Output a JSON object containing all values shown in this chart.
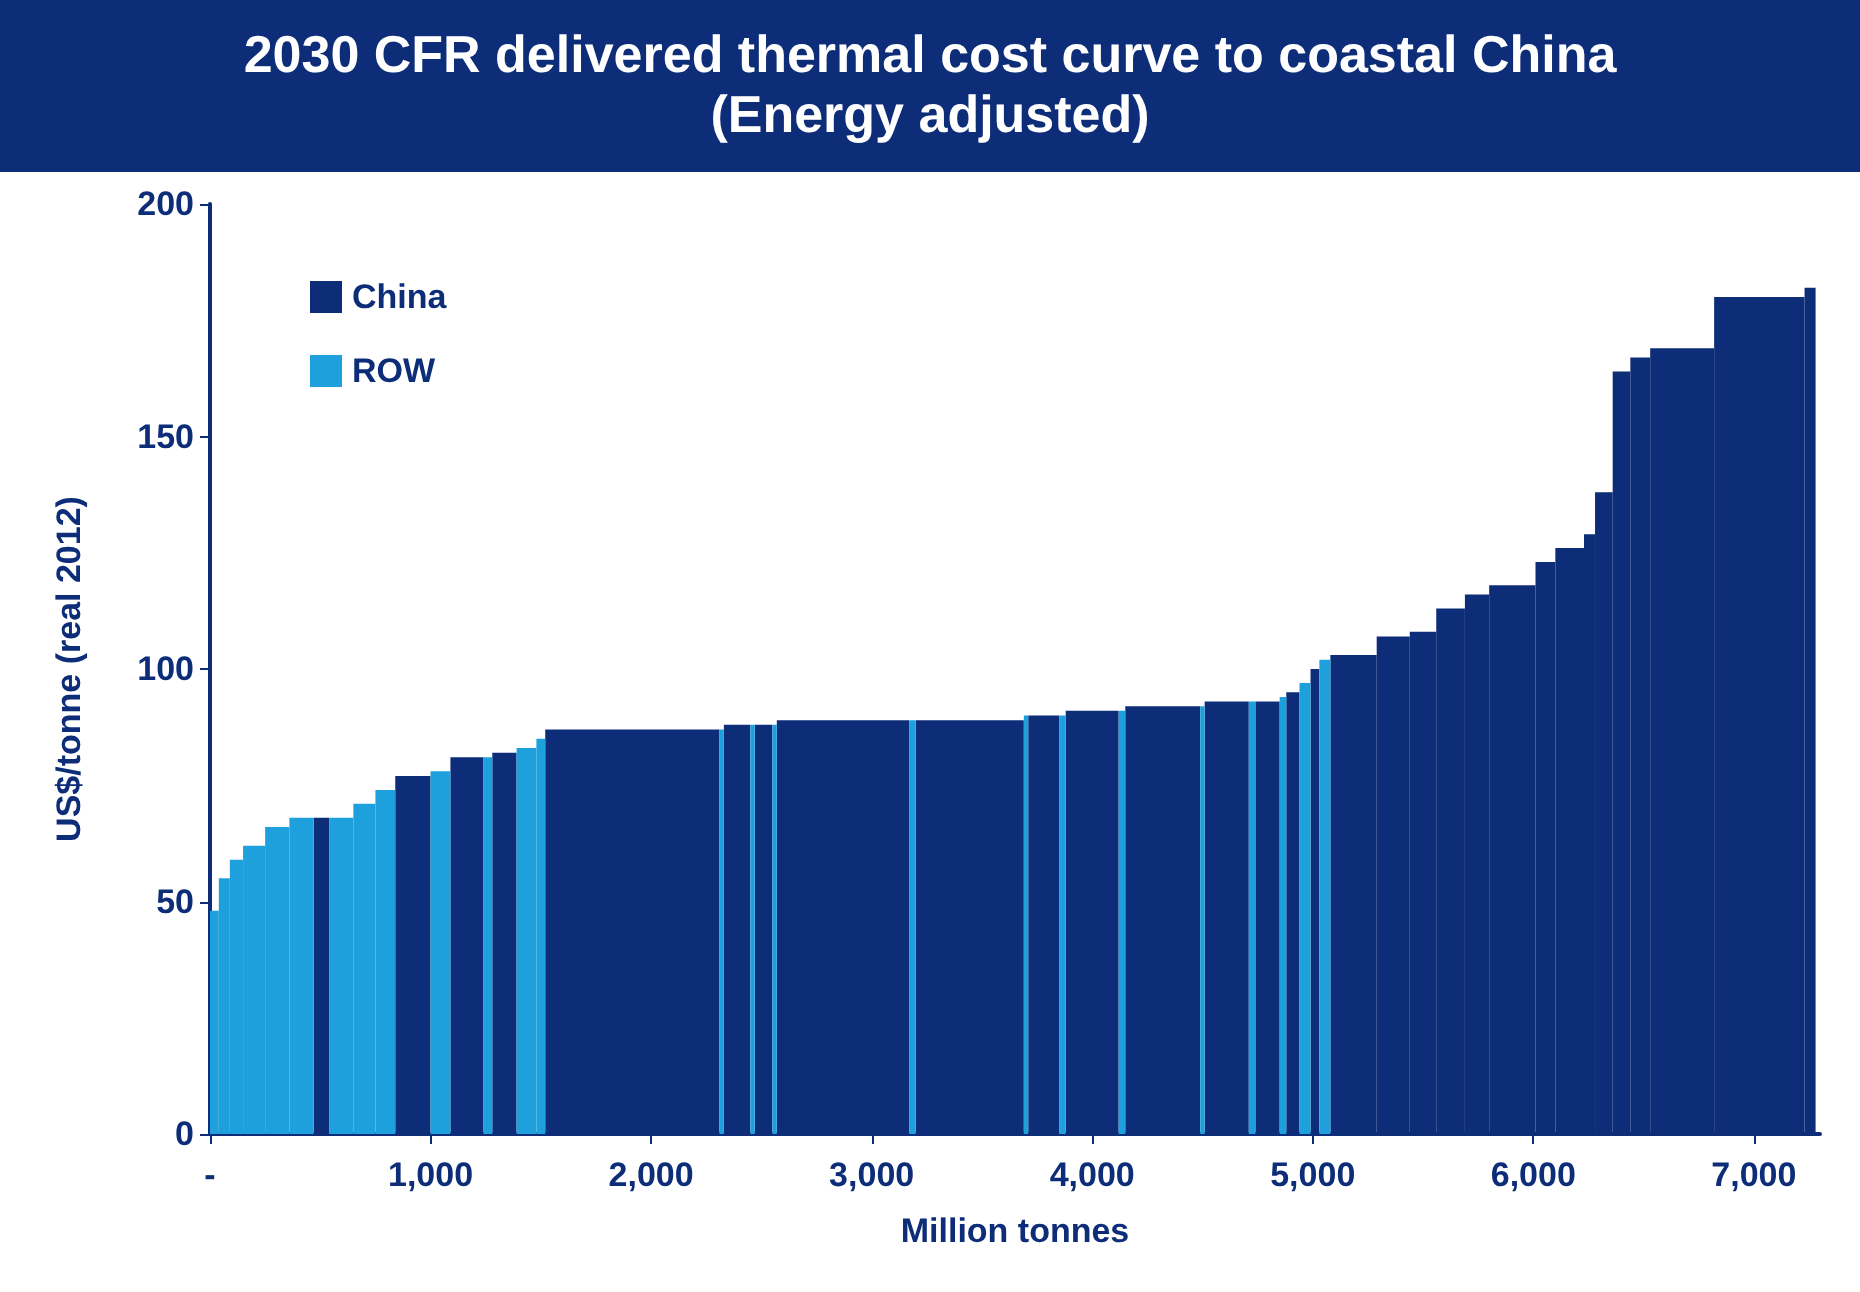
{
  "chart_data": {
    "type": "histogram",
    "title": "2030 CFR delivered thermal cost curve to coastal China",
    "subtitle": "(Energy adjusted)",
    "xlabel": "Million tonnes",
    "ylabel": "US$/tonne (real 2012)",
    "bins": [
      0,
      40,
      90,
      150,
      250,
      360,
      470,
      540,
      650,
      750,
      840,
      1000,
      1090,
      1240,
      1280,
      1390,
      1480,
      1520,
      2310,
      2330,
      2450,
      2470,
      2550,
      2570,
      3170,
      3200,
      3690,
      3710,
      3850,
      3880,
      4120,
      4150,
      4490,
      4510,
      4710,
      4740,
      4850,
      4880,
      4940,
      4990,
      5030,
      5080,
      5290,
      5440,
      5560,
      5690,
      5800,
      6010,
      6100,
      6230,
      6280,
      6360,
      6440,
      6530,
      6820,
      7230,
      7280
    ],
    "series": [
      {
        "name": "China",
        "color": "#0d2d78",
        "values": [
          null,
          null,
          null,
          null,
          null,
          null,
          68,
          null,
          null,
          null,
          77,
          null,
          81,
          null,
          82,
          null,
          null,
          87,
          null,
          88,
          null,
          88,
          null,
          89,
          null,
          89,
          null,
          90,
          null,
          91,
          null,
          92,
          null,
          93,
          null,
          93,
          null,
          95,
          null,
          100,
          null,
          103,
          107,
          108,
          113,
          116,
          118,
          123,
          126,
          129,
          138,
          164,
          167,
          169,
          180,
          182
        ]
      },
      {
        "name": "ROW",
        "color": "#1ea0dc",
        "values": [
          48,
          55,
          59,
          62,
          66,
          68,
          null,
          68,
          71,
          74,
          null,
          78,
          null,
          81,
          null,
          83,
          85,
          null,
          87,
          null,
          88,
          null,
          88,
          null,
          89,
          null,
          90,
          null,
          90,
          null,
          91,
          null,
          92,
          null,
          93,
          null,
          94,
          null,
          97,
          null,
          102,
          null,
          null,
          null,
          null,
          null,
          null,
          null,
          null,
          null,
          null,
          null,
          null,
          null,
          null,
          null
        ]
      }
    ],
    "xlim": [
      0,
      7300
    ],
    "xticks": [
      {
        "value": 0,
        "label": "-"
      },
      {
        "value": 1000,
        "label": "1,000"
      },
      {
        "value": 2000,
        "label": "2,000"
      },
      {
        "value": 3000,
        "label": "3,000"
      },
      {
        "value": 4000,
        "label": "4,000"
      },
      {
        "value": 5000,
        "label": "5,000"
      },
      {
        "value": 6000,
        "label": "6,000"
      },
      {
        "value": 7000,
        "label": "7,000"
      }
    ],
    "ylim": [
      0,
      200
    ],
    "yticks": [
      0,
      50,
      100,
      150,
      200
    ],
    "legend": "top left"
  }
}
